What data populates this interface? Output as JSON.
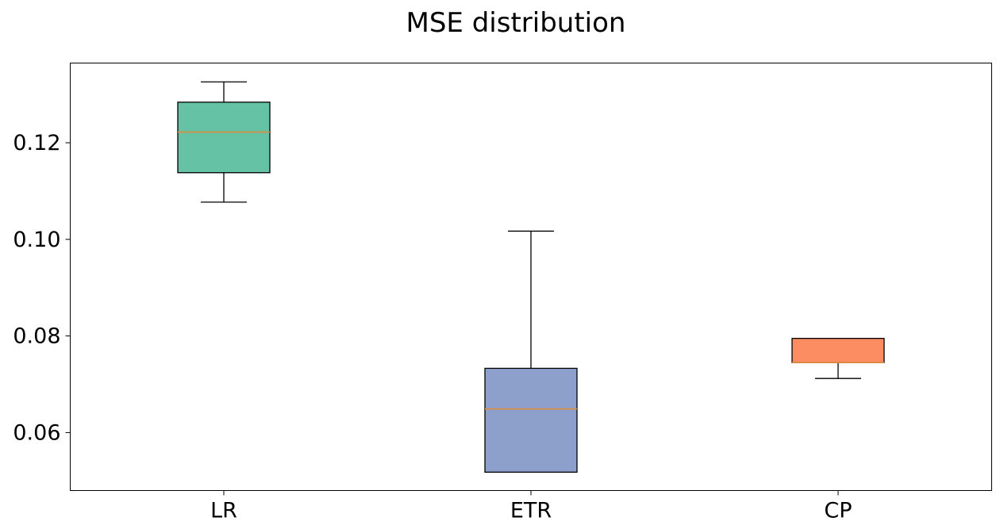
{
  "chart_data": {
    "type": "box",
    "title": "MSE distribution",
    "xlabel": "",
    "ylabel": "",
    "ylim": [
      0.048,
      0.1365
    ],
    "yticks": [
      0.06,
      0.08,
      0.1,
      0.12
    ],
    "ytick_labels": [
      "0.06",
      "0.08",
      "0.10",
      "0.12"
    ],
    "grid": false,
    "categories": [
      "LR",
      "ETR",
      "CP"
    ],
    "boxes": [
      {
        "label": "LR",
        "whisker_low": 0.1077,
        "q1": 0.1138,
        "median": 0.1222,
        "q3": 0.1284,
        "whisker_high": 0.1326
      },
      {
        "label": "ETR",
        "whisker_low": 0.0518,
        "q1": 0.0518,
        "median": 0.0649,
        "q3": 0.0733,
        "whisker_high": 0.1017
      },
      {
        "label": "CP",
        "whisker_low": 0.0712,
        "q1": 0.0745,
        "median": 0.0745,
        "q3": 0.0795,
        "whisker_high": 0.0795
      }
    ],
    "colors": {
      "LR": "#66c2a5",
      "ETR": "#8da0cb",
      "CP": "#fc8d62",
      "median": "#e08a3c"
    }
  }
}
